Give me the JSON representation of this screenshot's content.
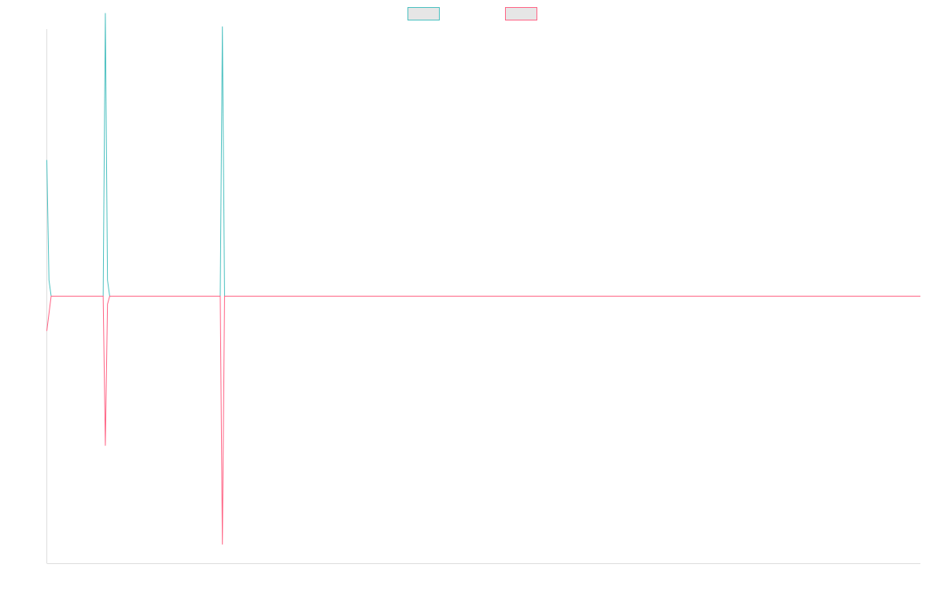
{
  "chart_data": {
    "type": "line",
    "title": "",
    "xlabel": "",
    "ylabel": "",
    "legend_position": "top-center",
    "grid": false,
    "x_count": 404,
    "ylim": [
      -1.0,
      1.0
    ],
    "baseline": 0,
    "series": [
      {
        "name": "",
        "color": "#4bc0c0",
        "fill": "#e6e6e6",
        "spikes": [
          [
            0,
            0.51
          ],
          [
            1,
            0.06
          ],
          [
            2,
            0.0
          ],
          [
            26,
            0.0
          ],
          [
            27,
            1.06
          ],
          [
            28,
            0.06
          ],
          [
            29,
            0.0
          ],
          [
            80,
            0.0
          ],
          [
            81,
            1.01
          ],
          [
            82,
            0.0
          ]
        ]
      },
      {
        "name": "",
        "color": "#ff6384",
        "fill": "#e6e6e6",
        "spikes": [
          [
            0,
            -0.13
          ],
          [
            2,
            0.0
          ],
          [
            26,
            0.0
          ],
          [
            27,
            -0.56
          ],
          [
            28,
            -0.03
          ],
          [
            29,
            0.0
          ],
          [
            80,
            0.0
          ],
          [
            81,
            -0.93
          ],
          [
            82,
            0.0
          ]
        ]
      }
    ]
  }
}
